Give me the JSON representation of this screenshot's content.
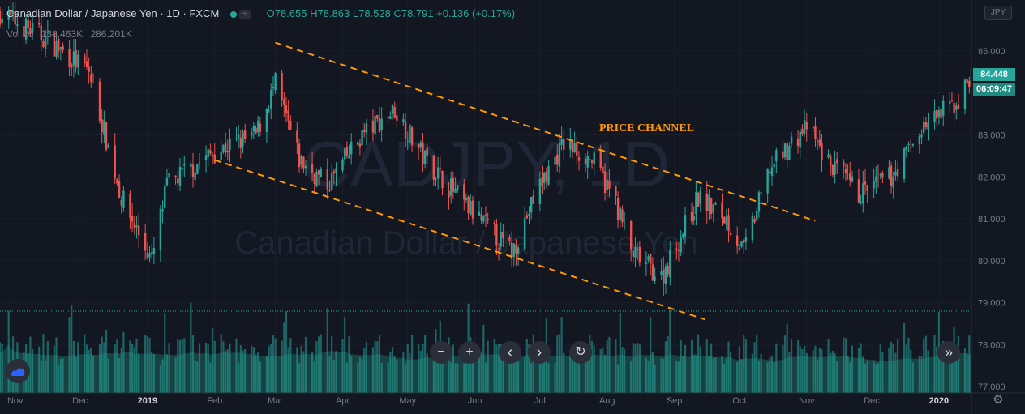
{
  "header": {
    "symbol_title": "Canadian Dollar / Japanese Yen · 1D · FXCM",
    "flag_icon": "wave-icon",
    "ohlc": "O78.655  H78.863  L78.528  C78.791  +0.136 (+0.17%)"
  },
  "volume_legend": {
    "label": "Vol 20",
    "value1": "138.463K",
    "value2": "286.201K"
  },
  "currency_badge": "JPY",
  "last_price": "84.448",
  "countdown": "06:09:47",
  "watermark": {
    "line1": "CADJPY, 1D",
    "line2": "Canadian Dollar / Japanese Yen"
  },
  "annotation": "PRICE CHANNEL",
  "controls": [
    {
      "name": "zoom-out-button",
      "glyph": "−"
    },
    {
      "name": "zoom-in-button",
      "glyph": "+"
    },
    {
      "name": "scroll-left-button",
      "glyph": "‹"
    },
    {
      "name": "scroll-right-button",
      "glyph": "›"
    },
    {
      "name": "reset-chart-button",
      "glyph": "↻"
    }
  ],
  "jump_button_glyph": "»",
  "settings_icon": "gear-icon",
  "colors": {
    "background": "#131722",
    "up": "#26a69a",
    "down": "#ef5350",
    "channel": "#ff9800",
    "volume": "#26a69a"
  },
  "chart_data": {
    "type": "candlestick",
    "y_axis": {
      "range": [
        77.0,
        85.4
      ],
      "ticks": [
        "85.000",
        "84.000",
        "83.000",
        "82.000",
        "81.000",
        "80.000",
        "79.000",
        "78.000",
        "77.000"
      ]
    },
    "x_axis": {
      "labels": [
        "Nov",
        "Dec",
        "2019",
        "Feb",
        "Mar",
        "Apr",
        "May",
        "Jun",
        "Jul",
        "Aug",
        "Sep",
        "Oct",
        "Nov",
        "Dec",
        "2020"
      ]
    },
    "anchor_points": [
      {
        "date": "2018-10-25",
        "close": 85.9
      },
      {
        "date": "2018-11-15",
        "close": 85.3
      },
      {
        "date": "2018-12-05",
        "close": 84.5
      },
      {
        "date": "2018-12-20",
        "close": 81.5
      },
      {
        "date": "2019-01-03",
        "close": 80.0
      },
      {
        "date": "2019-01-10",
        "close": 81.8
      },
      {
        "date": "2019-02-01",
        "close": 82.6
      },
      {
        "date": "2019-02-20",
        "close": 83.0
      },
      {
        "date": "2019-03-01",
        "close": 84.2
      },
      {
        "date": "2019-03-12",
        "close": 82.4
      },
      {
        "date": "2019-03-25",
        "close": 81.8
      },
      {
        "date": "2019-04-10",
        "close": 83.0
      },
      {
        "date": "2019-04-25",
        "close": 83.6
      },
      {
        "date": "2019-05-08",
        "close": 82.5
      },
      {
        "date": "2019-05-28",
        "close": 81.3
      },
      {
        "date": "2019-06-18",
        "close": 80.2
      },
      {
        "date": "2019-07-01",
        "close": 81.8
      },
      {
        "date": "2019-07-12",
        "close": 82.8
      },
      {
        "date": "2019-07-25",
        "close": 82.4
      },
      {
        "date": "2019-08-05",
        "close": 81.4
      },
      {
        "date": "2019-08-12",
        "close": 80.2
      },
      {
        "date": "2019-08-26",
        "close": 79.6
      },
      {
        "date": "2019-09-12",
        "close": 81.5
      },
      {
        "date": "2019-09-25",
        "close": 81.0
      },
      {
        "date": "2019-10-03",
        "close": 80.2
      },
      {
        "date": "2019-10-15",
        "close": 82.2
      },
      {
        "date": "2019-11-01",
        "close": 83.2
      },
      {
        "date": "2019-11-10",
        "close": 82.4
      },
      {
        "date": "2019-11-25",
        "close": 81.6
      },
      {
        "date": "2019-12-10",
        "close": 82.0
      },
      {
        "date": "2019-12-25",
        "close": 83.2
      },
      {
        "date": "2020-01-10",
        "close": 83.8
      },
      {
        "date": "2020-01-16",
        "close": 84.45
      }
    ],
    "channel_lines": [
      {
        "from": {
          "date": "2019-03-01",
          "price": 85.2
        },
        "to": {
          "date": "2019-11-05",
          "price": 80.95
        }
      },
      {
        "from": {
          "date": "2019-02-01",
          "price": 82.4
        },
        "to": {
          "date": "2019-09-15",
          "price": 78.6
        }
      }
    ],
    "volume": {
      "series": "Vol 20"
    }
  }
}
